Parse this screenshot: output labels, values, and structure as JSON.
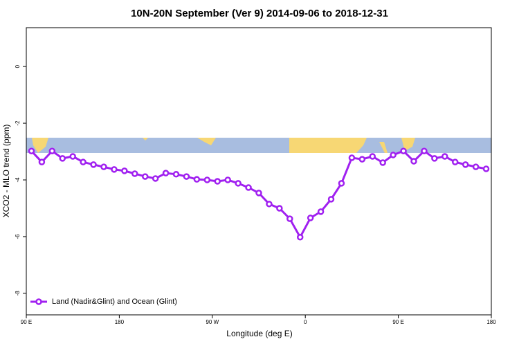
{
  "chart_data": {
    "type": "line",
    "title": "10N-20N September (Ver 9)   2014-09-06 to 2018-12-31",
    "x_label": "Longitude (deg E)",
    "y_label": "XCO2 - MLO trend (ppm)",
    "x": [
      95,
      105,
      115,
      125,
      135,
      145,
      155,
      165,
      175,
      185,
      195,
      205,
      215,
      225,
      235,
      245,
      255,
      265,
      275,
      285,
      295,
      305,
      315,
      325,
      335,
      345,
      355,
      365,
      375,
      385,
      395,
      405,
      415,
      425,
      435,
      445,
      455,
      465,
      475,
      485,
      495,
      505,
      515,
      525,
      535
    ],
    "series": [
      {
        "name": "Land (Nadir&Glint) and Ocean (Glint)",
        "color": "#a020f0",
        "values": [
          -2.98,
          -3.37,
          -2.98,
          -3.24,
          -3.17,
          -3.37,
          -3.46,
          -3.54,
          -3.63,
          -3.68,
          -3.78,
          -3.88,
          -3.95,
          -3.76,
          -3.8,
          -3.88,
          -3.98,
          -4.0,
          -4.05,
          -4.0,
          -4.12,
          -4.27,
          -4.46,
          -4.85,
          -5.0,
          -5.37,
          -6.02,
          -5.34,
          -5.12,
          -4.68,
          -4.12,
          -3.22,
          -3.27,
          -3.17,
          -3.39,
          -3.12,
          -2.98,
          -3.34,
          -2.98,
          -3.24,
          -3.17,
          -3.37,
          -3.46,
          -3.54,
          -3.61
        ]
      }
    ],
    "xlim": [
      90,
      540
    ],
    "xticks": [
      {
        "value": 90,
        "label": "90 E"
      },
      180,
      {
        "value": 270,
        "label": "90 W"
      },
      {
        "value": 360,
        "label": "0"
      },
      {
        "value": 450,
        "label": "90 E"
      },
      {
        "value": 540,
        "label": "180"
      }
    ],
    "ylim": [
      -8.76,
      1.37
    ],
    "yticks": [
      -8,
      -6,
      -4,
      -2,
      0
    ],
    "legend": "bottom-left"
  }
}
